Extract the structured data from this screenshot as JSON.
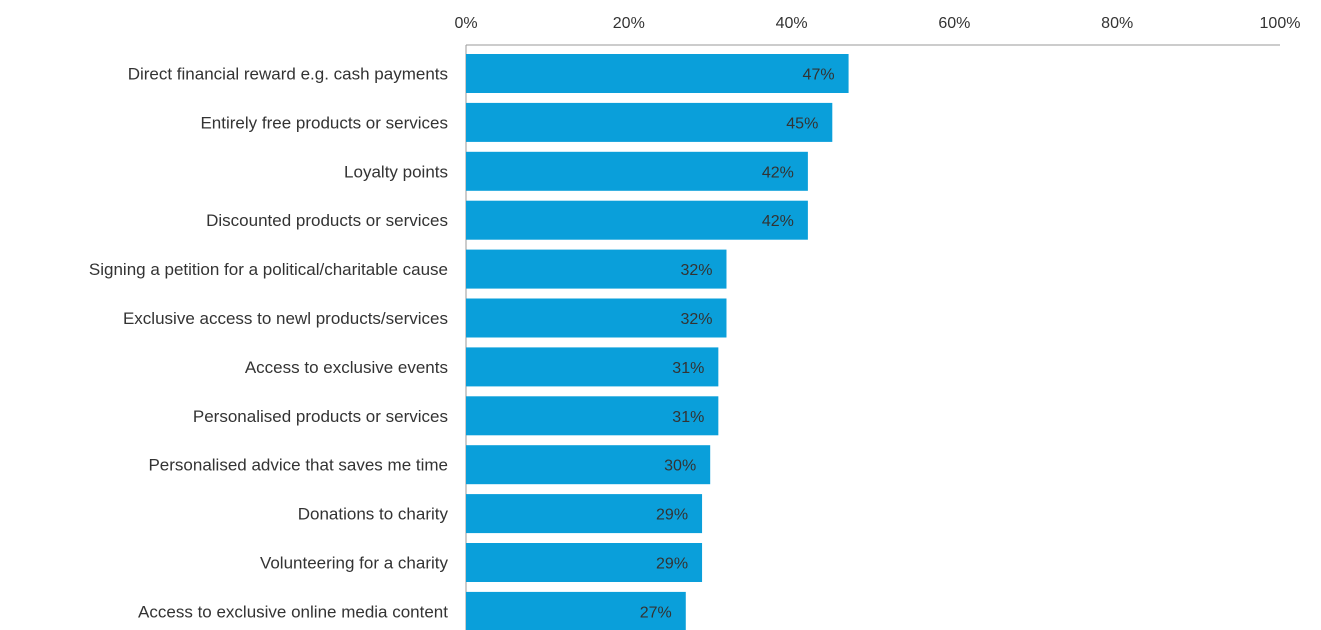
{
  "chart_data": {
    "type": "bar",
    "orientation": "horizontal",
    "title": "",
    "xlabel": "",
    "ylabel": "",
    "xlim": [
      0,
      100
    ],
    "x_ticks": [
      "0%",
      "20%",
      "40%",
      "60%",
      "80%",
      "100%"
    ],
    "x_tick_values": [
      0,
      20,
      40,
      60,
      80,
      100
    ],
    "axis_position": "top",
    "grid": false,
    "legend": "none",
    "bar_color": "#0a9fda",
    "categories": [
      "Direct financial reward e.g. cash payments",
      "Entirely free products or services",
      "Loyalty points",
      "Discounted products or services",
      "Signing a petition for a political/charitable cause",
      "Exclusive access to newl products/services",
      "Access to exclusive events",
      "Personalised products or services",
      "Personalised advice that saves me time",
      "Donations to charity",
      "Volunteering for a charity",
      "Access to exclusive online media content"
    ],
    "values": [
      47,
      45,
      42,
      42,
      32,
      32,
      31,
      31,
      30,
      29,
      29,
      27
    ],
    "value_labels": [
      "47%",
      "45%",
      "42%",
      "42%",
      "32%",
      "32%",
      "31%",
      "31%",
      "30%",
      "29%",
      "29%",
      "27%"
    ]
  }
}
